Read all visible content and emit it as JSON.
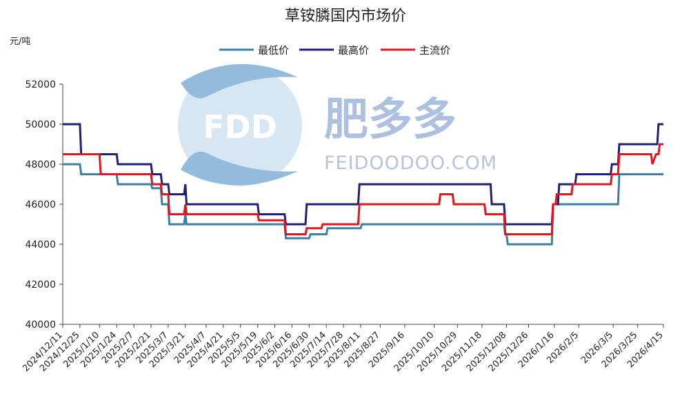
{
  "chart_data": {
    "type": "line",
    "title": "草铵膦国内市场价",
    "ylabel": "元/吨",
    "xlabel": "",
    "ylim": [
      40000,
      52000
    ],
    "yticks": [
      40000,
      42000,
      44000,
      46000,
      48000,
      50000,
      52000
    ],
    "x_range": [
      "2024-12-11",
      "2026-04-15"
    ],
    "categories": [
      "2024/12/11",
      "2024/12/25",
      "2025/1/10",
      "2025/1/24",
      "2025/2/7",
      "2025/2/21",
      "2025/3/7",
      "2025/3/21",
      "2025/4/7",
      "2025/4/21",
      "2025/5/5",
      "2025/5/19",
      "2025/6/2",
      "2025/6/16",
      "2025/6/30",
      "2025/7/14",
      "2025/7/28",
      "2025/8/11",
      "2025/8/27",
      "2025/9/16",
      "2025/10/10",
      "2025/10/29",
      "2025/11/18",
      "2025/12/08",
      "2025/12/26",
      "2026/1/16",
      "2026/2/5",
      "2026/3/5",
      "2026/3/25",
      "2026/4/15"
    ],
    "legend_position": "top-center",
    "grid": false,
    "series": [
      {
        "name": "最低价",
        "color": "#3d7fa6",
        "points": [
          [
            "2024-12-11",
            48000
          ],
          [
            "2024-12-25",
            48000
          ],
          [
            "2024-12-26",
            47500
          ],
          [
            "2025-01-24",
            47500
          ],
          [
            "2025-01-25",
            47000
          ],
          [
            "2025-02-21",
            47000
          ],
          [
            "2025-02-22",
            46800
          ],
          [
            "2025-03-01",
            46800
          ],
          [
            "2025-03-02",
            46000
          ],
          [
            "2025-03-07",
            46000
          ],
          [
            "2025-03-08",
            45000
          ],
          [
            "2025-03-20",
            45000
          ],
          [
            "2025-03-21",
            45500
          ],
          [
            "2025-03-22",
            45000
          ],
          [
            "2025-06-10",
            45000
          ],
          [
            "2025-06-11",
            44300
          ],
          [
            "2025-06-30",
            44300
          ],
          [
            "2025-07-01",
            44500
          ],
          [
            "2025-07-14",
            44500
          ],
          [
            "2025-07-15",
            44800
          ],
          [
            "2025-08-11",
            44800
          ],
          [
            "2025-08-12",
            45000
          ],
          [
            "2025-12-06",
            45000
          ],
          [
            "2025-12-07",
            44500
          ],
          [
            "2025-12-08",
            44500
          ],
          [
            "2025-12-09",
            44000
          ],
          [
            "2026-01-14",
            44000
          ],
          [
            "2026-01-15",
            46000
          ],
          [
            "2026-03-09",
            46000
          ],
          [
            "2026-03-10",
            47500
          ],
          [
            "2026-04-15",
            47500
          ]
        ]
      },
      {
        "name": "最高价",
        "color": "#1f1f7a",
        "points": [
          [
            "2024-12-11",
            50000
          ],
          [
            "2024-12-25",
            50000
          ],
          [
            "2024-12-26",
            48500
          ],
          [
            "2025-01-24",
            48500
          ],
          [
            "2025-01-25",
            48000
          ],
          [
            "2025-02-21",
            48000
          ],
          [
            "2025-02-22",
            47500
          ],
          [
            "2025-03-01",
            47500
          ],
          [
            "2025-03-02",
            47000
          ],
          [
            "2025-03-07",
            47000
          ],
          [
            "2025-03-08",
            46500
          ],
          [
            "2025-03-20",
            46500
          ],
          [
            "2025-03-21",
            47000
          ],
          [
            "2025-03-22",
            46000
          ],
          [
            "2025-05-19",
            46000
          ],
          [
            "2025-05-20",
            45500
          ],
          [
            "2025-06-10",
            45500
          ],
          [
            "2025-06-11",
            45000
          ],
          [
            "2025-06-27",
            45000
          ],
          [
            "2025-06-28",
            46000
          ],
          [
            "2025-08-09",
            46000
          ],
          [
            "2025-08-10",
            47000
          ],
          [
            "2025-11-25",
            47000
          ],
          [
            "2025-11-26",
            46000
          ],
          [
            "2025-12-06",
            46000
          ],
          [
            "2025-12-07",
            45000
          ],
          [
            "2026-01-14",
            45000
          ],
          [
            "2026-01-15",
            46000
          ],
          [
            "2026-01-19",
            46000
          ],
          [
            "2026-01-20",
            47000
          ],
          [
            "2026-02-02",
            47000
          ],
          [
            "2026-02-03",
            47500
          ],
          [
            "2026-03-03",
            47500
          ],
          [
            "2026-03-04",
            48000
          ],
          [
            "2026-03-09",
            48000
          ],
          [
            "2026-03-10",
            49000
          ],
          [
            "2026-04-10",
            49000
          ],
          [
            "2026-04-11",
            50000
          ],
          [
            "2026-04-15",
            50000
          ]
        ]
      },
      {
        "name": "主流价",
        "color": "#e0151e",
        "points": [
          [
            "2024-12-11",
            48500
          ],
          [
            "2025-01-10",
            48500
          ],
          [
            "2025-01-11",
            47500
          ],
          [
            "2025-02-21",
            47500
          ],
          [
            "2025-02-22",
            47000
          ],
          [
            "2025-03-01",
            47000
          ],
          [
            "2025-03-02",
            46500
          ],
          [
            "2025-03-07",
            46500
          ],
          [
            "2025-03-08",
            45500
          ],
          [
            "2025-03-20",
            45500
          ],
          [
            "2025-03-21",
            46000
          ],
          [
            "2025-03-22",
            45500
          ],
          [
            "2025-05-19",
            45500
          ],
          [
            "2025-05-20",
            45200
          ],
          [
            "2025-06-10",
            45200
          ],
          [
            "2025-06-11",
            44500
          ],
          [
            "2025-06-27",
            44500
          ],
          [
            "2025-06-28",
            44800
          ],
          [
            "2025-07-10",
            44800
          ],
          [
            "2025-07-11",
            45000
          ],
          [
            "2025-08-09",
            45000
          ],
          [
            "2025-08-10",
            46000
          ],
          [
            "2025-10-14",
            46000
          ],
          [
            "2025-10-15",
            46500
          ],
          [
            "2025-10-25",
            46500
          ],
          [
            "2025-10-26",
            46000
          ],
          [
            "2025-11-20",
            46000
          ],
          [
            "2025-11-21",
            45500
          ],
          [
            "2025-12-06",
            45500
          ],
          [
            "2025-12-07",
            44500
          ],
          [
            "2026-01-14",
            44500
          ],
          [
            "2026-01-15",
            46000
          ],
          [
            "2026-01-17",
            46000
          ],
          [
            "2026-01-18",
            46500
          ],
          [
            "2026-01-30",
            46500
          ],
          [
            "2026-01-31",
            47000
          ],
          [
            "2026-03-03",
            47000
          ],
          [
            "2026-03-04",
            47500
          ],
          [
            "2026-03-09",
            47500
          ],
          [
            "2026-03-10",
            48500
          ],
          [
            "2026-04-05",
            48500
          ],
          [
            "2026-04-06",
            48000
          ],
          [
            "2026-04-09",
            48500
          ],
          [
            "2026-04-11",
            48500
          ],
          [
            "2026-04-12",
            49000
          ],
          [
            "2026-04-15",
            49000
          ]
        ]
      }
    ]
  },
  "watermark": {
    "logo_text": "FDD",
    "brand_text": "肥多多",
    "brand_url": "FEIDOODOO.COM"
  }
}
